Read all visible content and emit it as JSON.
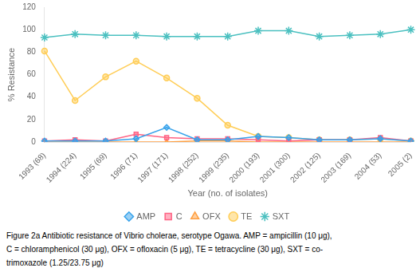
{
  "chart_data": {
    "type": "line",
    "categories": [
      "1993 (68)",
      "1994 (224)",
      "1995 (69)",
      "1996 (71)",
      "1997 (171)",
      "1998 (252)",
      "1999 (235)",
      "2000 (193)",
      "2001 (300)",
      "2002 (125)",
      "2003 (169)",
      "2004 (53)",
      "2005 (2)"
    ],
    "series": [
      {
        "name": "AMP",
        "marker": "diamond",
        "values": [
          1,
          1,
          1,
          3,
          13,
          2,
          2,
          5,
          4,
          2,
          2,
          3,
          1
        ]
      },
      {
        "name": "C",
        "marker": "square",
        "values": [
          1,
          2,
          1,
          7,
          4,
          3,
          3,
          2,
          1,
          2,
          2,
          4,
          1
        ]
      },
      {
        "name": "OFX",
        "marker": "triangle",
        "values": [
          0,
          0,
          0,
          0,
          0,
          1,
          1,
          0,
          0,
          0,
          0,
          0,
          0
        ]
      },
      {
        "name": "TE",
        "marker": "circle",
        "values": [
          81,
          37,
          58,
          72,
          57,
          39,
          15,
          5,
          4,
          2,
          2,
          3,
          1
        ]
      },
      {
        "name": "SXT",
        "marker": "star",
        "values": [
          93,
          96,
          95,
          95,
          94,
          94,
          94,
          99,
          99,
          94,
          95,
          96,
          100
        ]
      }
    ],
    "xlabel": "Year (no. of isolates)",
    "ylabel": "% Resistance",
    "ylim": [
      0,
      120
    ],
    "yticks": [
      0,
      20,
      40,
      60,
      80,
      100,
      120
    ],
    "grid": false,
    "legend": "bottom",
    "caption": [
      "Figure 2a Antibiotic resistance of Vibrio cholerae, serotype Ogawa. AMP = ampicillin (10 μg),",
      "C = chloramphenicol (30 μg), OFX = ofloxacin (5 μg), TE = tetracycline (30 μg), SXT = co-",
      "trimoxazole (1.25/23.75 μg)"
    ]
  }
}
